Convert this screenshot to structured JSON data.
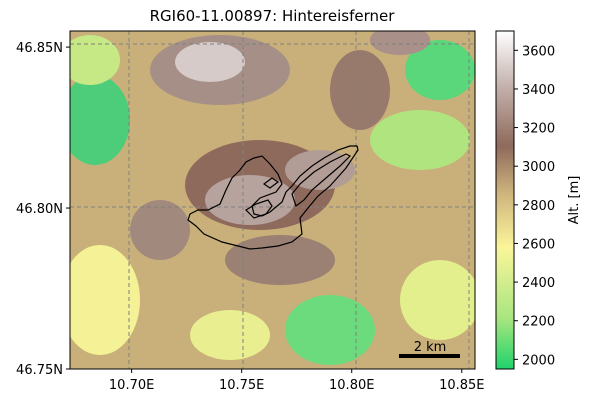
{
  "map": {
    "title": "RGI60-11.00897: Hintereisferner",
    "x_ticks": [
      {
        "value": 10.7,
        "label": "10.70E"
      },
      {
        "value": 10.75,
        "label": "10.75E"
      },
      {
        "value": 10.8,
        "label": "10.80E"
      },
      {
        "value": 10.85,
        "label": "10.85E"
      }
    ],
    "y_ticks": [
      {
        "value": 46.85,
        "label": "46.85N"
      },
      {
        "value": 46.8,
        "label": "46.80N"
      },
      {
        "value": 46.75,
        "label": "46.75N"
      }
    ],
    "lon_range": [
      10.672,
      10.856
    ],
    "lat_range": [
      46.75,
      46.855
    ],
    "grid": true,
    "scale_bar": {
      "label": "2 km",
      "length_km": 2
    },
    "outline_color": "#000000"
  },
  "colorbar": {
    "label": "Alt. [m]",
    "range": [
      1950,
      3700
    ],
    "ticks": [
      2000,
      2200,
      2400,
      2600,
      2800,
      3000,
      3200,
      3400,
      3600
    ],
    "colormap": "terrain",
    "stops": [
      "#33cc66",
      "#e9f18a",
      "#fbf59a",
      "#c9b07a",
      "#8e6a5c",
      "#c7b4b0",
      "#ffffff"
    ]
  }
}
